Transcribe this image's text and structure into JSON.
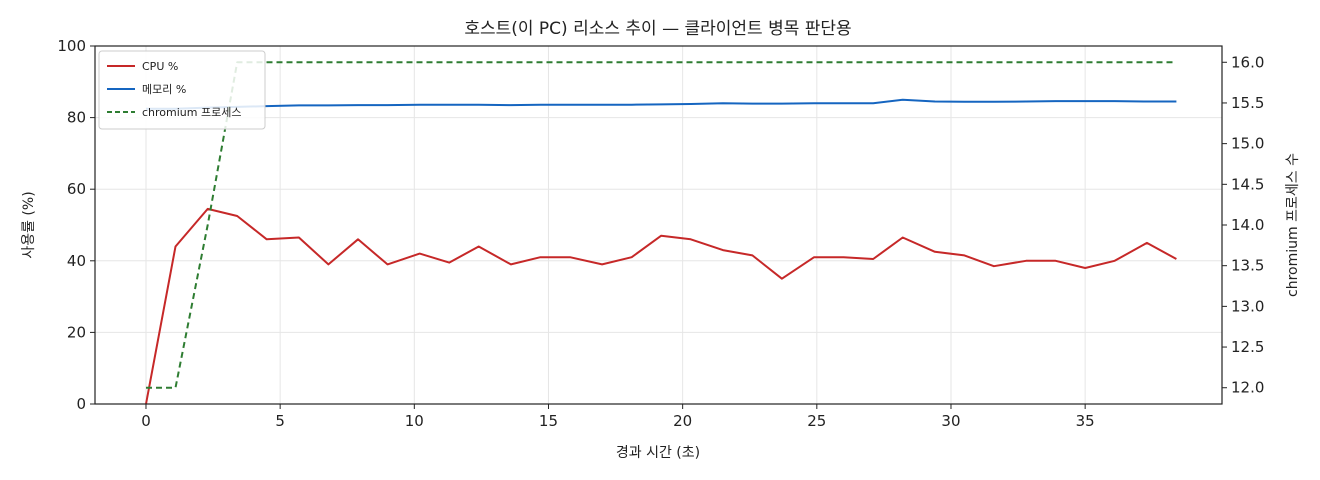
{
  "chart_data": {
    "type": "line",
    "title": "호스트(이 PC) 리소스 추이 — 클라이언트 병목 판단용",
    "xlabel": "경과 시간 (초)",
    "ylabel": "사용률 (%)",
    "y2label": "chromium 프로세스 수",
    "xlim": [
      -1.9,
      40.1
    ],
    "ylim": [
      0,
      100
    ],
    "y2lim": [
      11.8,
      16.2
    ],
    "xticks": [
      0,
      5,
      10,
      15,
      20,
      25,
      30,
      35
    ],
    "yticks": [
      0,
      20,
      40,
      60,
      80,
      100
    ],
    "y2ticks": [
      12.0,
      12.5,
      13.0,
      13.5,
      14.0,
      14.5,
      15.0,
      15.5,
      16.0
    ],
    "y2tick_labels": [
      "12.0",
      "12.5",
      "13.0",
      "13.5",
      "14.0",
      "14.5",
      "15.0",
      "15.5",
      "16.0"
    ],
    "grid": true,
    "legend_position": "top-left",
    "x": [
      0,
      1.1,
      2.3,
      3.4,
      4.5,
      5.7,
      6.8,
      7.9,
      9.0,
      10.2,
      11.3,
      12.4,
      13.6,
      14.7,
      15.8,
      17.0,
      18.1,
      19.2,
      20.3,
      21.5,
      22.6,
      23.7,
      24.9,
      26.0,
      27.1,
      28.2,
      29.4,
      30.5,
      31.6,
      32.8,
      33.9,
      35.0,
      36.1,
      37.3,
      38.4
    ],
    "series": [
      {
        "name": "CPU %",
        "axis": "left",
        "color": "#c62828",
        "style": "solid",
        "values": [
          0,
          44,
          54.5,
          52.5,
          46,
          46.5,
          39,
          46,
          39,
          42,
          39.5,
          44,
          39,
          41,
          41,
          39,
          41,
          47,
          46,
          43,
          41.5,
          35,
          41,
          41,
          40.5,
          46.5,
          42.5,
          41.5,
          38.5,
          40,
          40,
          38,
          40,
          45,
          40.5
        ]
      },
      {
        "name": "메모리 %",
        "axis": "left",
        "color": "#1565c0",
        "style": "solid",
        "values": [
          82.5,
          82.5,
          82.8,
          83.0,
          83.2,
          83.4,
          83.4,
          83.5,
          83.5,
          83.6,
          83.6,
          83.6,
          83.5,
          83.6,
          83.6,
          83.6,
          83.6,
          83.7,
          83.8,
          84.0,
          83.9,
          83.9,
          84.0,
          84.0,
          84.0,
          85.0,
          84.5,
          84.4,
          84.4,
          84.5,
          84.6,
          84.6,
          84.6,
          84.5,
          84.5
        ]
      },
      {
        "name": "chromium 프로세스",
        "axis": "right",
        "color": "#2e7d32",
        "style": "dashed",
        "values": [
          12,
          12,
          14,
          16,
          16,
          16,
          16,
          16,
          16,
          16,
          16,
          16,
          16,
          16,
          16,
          16,
          16,
          16,
          16,
          16,
          16,
          16,
          16,
          16,
          16,
          16,
          16,
          16,
          16,
          16,
          16,
          16,
          16,
          16,
          16
        ]
      }
    ]
  }
}
